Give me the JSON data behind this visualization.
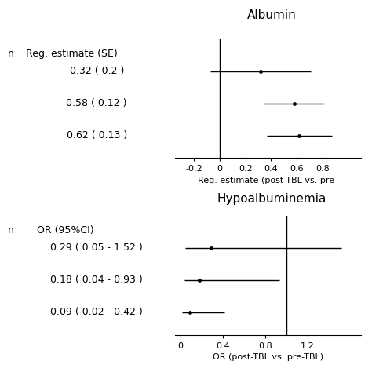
{
  "top_panel": {
    "title": "Albumin",
    "header_label": "Reg. estimate (SE)",
    "rows": [
      {
        "label": "0.32 ( 0.2 )",
        "estimate": 0.32,
        "se": 0.2
      },
      {
        "label": "0.58 ( 0.12 )",
        "estimate": 0.58,
        "se": 0.12
      },
      {
        "label": "0.62 ( 0.13 )",
        "estimate": 0.62,
        "se": 0.13
      }
    ],
    "xlim": [
      -0.35,
      1.1
    ],
    "xticks": [
      -0.2,
      0,
      0.2,
      0.4,
      0.6,
      0.8
    ],
    "xtick_labels": [
      "-0.2",
      "0",
      "0.2",
      "0.4",
      "0.6",
      "0.8"
    ],
    "xlabel": "Reg. estimate (post-TBL vs. pre-",
    "ref_line": 0
  },
  "bottom_panel": {
    "title": "Hypoalbuminemia",
    "header_label": "OR (95%CI)",
    "rows": [
      {
        "label": "0.29 ( 0.05 - 1.52 )",
        "estimate": 0.29,
        "lo": 0.05,
        "hi": 1.52
      },
      {
        "label": "0.18 ( 0.04 - 0.93 )",
        "estimate": 0.18,
        "lo": 0.04,
        "hi": 0.93
      },
      {
        "label": "0.09 ( 0.02 - 0.42 )",
        "estimate": 0.09,
        "lo": 0.02,
        "hi": 0.42
      }
    ],
    "xlim": [
      -0.05,
      1.7
    ],
    "xticks": [
      0,
      0.4,
      0.8,
      1.2
    ],
    "xtick_labels": [
      "0",
      "0.4",
      "0.8",
      "1.2"
    ],
    "xlabel": "OR (post-TBL vs. pre-TBL)",
    "ref_line": 1.0
  },
  "background_color": "#ffffff",
  "dot_size": 3.5,
  "line_color": "#000000",
  "text_color": "#000000",
  "fontsize": 9,
  "title_fontsize": 11
}
